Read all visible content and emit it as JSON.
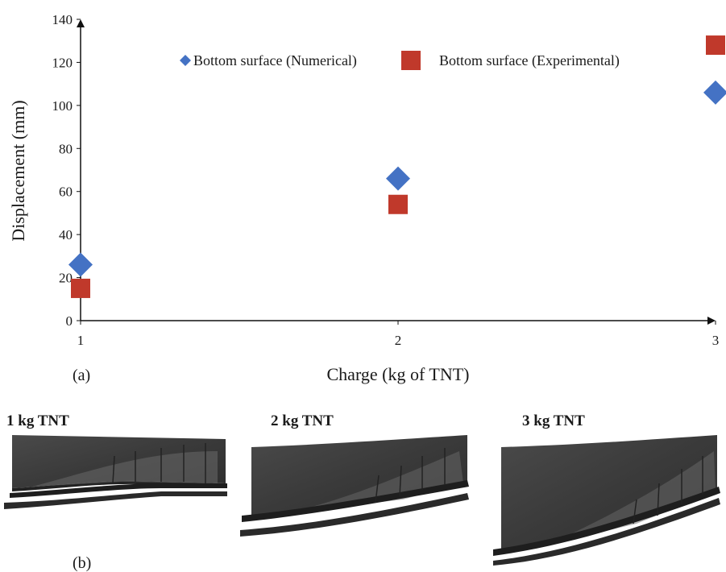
{
  "chart_data": {
    "type": "scatter",
    "xlabel": "Charge (kg of TNT)",
    "ylabel": "Displacement (mm)",
    "xlim": [
      1,
      3
    ],
    "ylim": [
      0,
      140
    ],
    "x_ticks": [
      "1",
      "2",
      "3"
    ],
    "y_ticks": [
      "0",
      "20",
      "40",
      "60",
      "80",
      "100",
      "120",
      "140"
    ],
    "grid": false,
    "legend_position": "top",
    "series": [
      {
        "name": "Bottom surface (Numerical)",
        "marker": "diamond",
        "color": "#4472C4",
        "x": [
          1,
          2,
          3
        ],
        "y": [
          26,
          66,
          106
        ]
      },
      {
        "name": "Bottom surface (Experimental)",
        "marker": "square",
        "color": "#C0392B",
        "x": [
          1,
          2,
          3
        ],
        "y": [
          15,
          54,
          128
        ]
      }
    ]
  },
  "panel_labels": {
    "a": "(a)",
    "b": "(b)"
  },
  "images": [
    {
      "title": "1 kg TNT"
    },
    {
      "title": "2 kg TNT"
    },
    {
      "title": "3 kg TNT"
    }
  ]
}
